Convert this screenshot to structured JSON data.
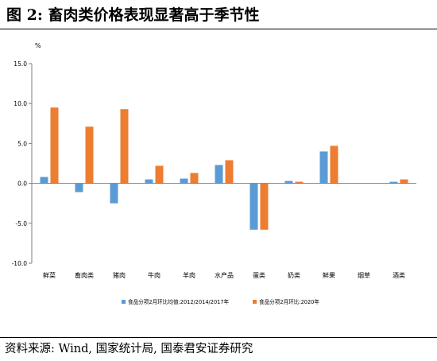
{
  "figure": {
    "title": "图 2:  畜肉类价格表现显著高于季节性",
    "source": "资料来源:  Wind, 国家统计局, 国泰君安证券研究"
  },
  "colors": {
    "series_a": "#5b9bd5",
    "series_b": "#ed7d31",
    "axis": "#7f7f7f"
  },
  "chart_data": {
    "type": "bar",
    "ylabel": "%",
    "ylim": [
      -10.0,
      15.0
    ],
    "yticks": [
      "15.0",
      "10.0",
      "5.0",
      "0.0",
      "-5.0",
      "-10.0"
    ],
    "ytick_values": [
      15,
      10,
      5,
      0,
      -5,
      -10
    ],
    "categories": [
      "鲜菜",
      "畜肉类",
      "猪肉",
      "牛肉",
      "羊肉",
      "水产品",
      "蛋类",
      "奶类",
      "鲜果",
      "烟草",
      "酒类"
    ],
    "series": [
      {
        "name": "食品分项2月环比均值:2012/2014/2017年",
        "values": [
          0.8,
          -1.1,
          -2.5,
          0.5,
          0.6,
          2.3,
          -5.8,
          0.3,
          4.0,
          0.0,
          0.2
        ]
      },
      {
        "name": "食品分项2月环比:2020年",
        "values": [
          9.5,
          7.1,
          9.3,
          2.2,
          1.3,
          2.9,
          -5.8,
          0.2,
          4.7,
          0.0,
          0.5
        ]
      }
    ],
    "legend_position": "bottom",
    "grid": false
  }
}
